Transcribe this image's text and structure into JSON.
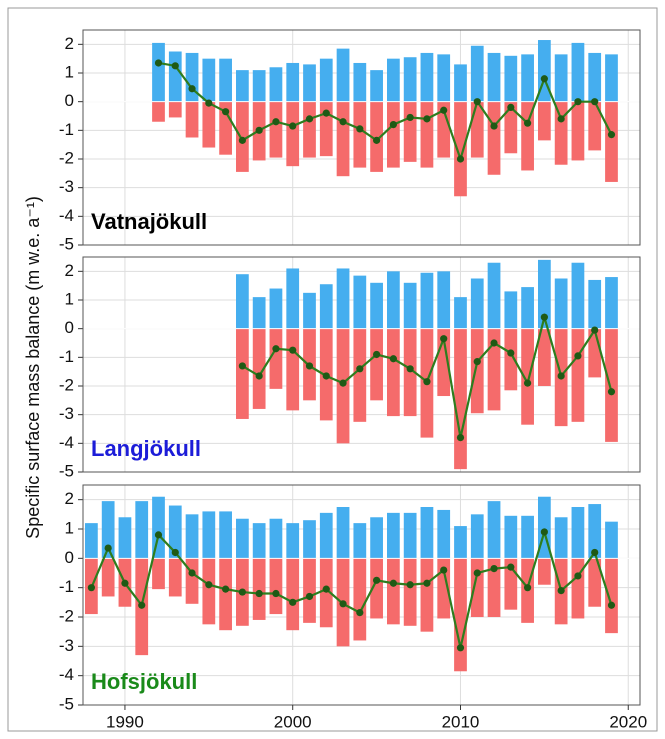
{
  "chart_data": [
    {
      "type": "bar",
      "label": "Vatnajökull",
      "label_color": "#000000",
      "ylabel": "Specific surface mass balance (m w.e. a⁻¹)",
      "xlim": [
        1987.5,
        2020.7
      ],
      "xticks": [
        1990,
        2000,
        2010,
        2020
      ],
      "xtick_labels": false,
      "ylim": [
        -5,
        2.5
      ],
      "yticks": [
        -5,
        -4,
        -3,
        -2,
        -1,
        0,
        1,
        2
      ],
      "grid": true,
      "x": [
        1992,
        1993,
        1994,
        1995,
        1996,
        1997,
        1998,
        1999,
        2000,
        2001,
        2002,
        2003,
        2004,
        2005,
        2006,
        2007,
        2008,
        2009,
        2010,
        2011,
        2012,
        2013,
        2014,
        2015,
        2016,
        2017,
        2018,
        2019
      ],
      "series": [
        {
          "mark": "bar",
          "color": "#45aeef",
          "values": [
            2.05,
            1.75,
            1.7,
            1.5,
            1.5,
            1.1,
            1.1,
            1.2,
            1.35,
            1.3,
            1.5,
            1.85,
            1.35,
            1.1,
            1.5,
            1.55,
            1.7,
            1.65,
            1.3,
            1.95,
            1.7,
            1.6,
            1.65,
            2.15,
            1.65,
            2.05,
            1.7,
            1.65
          ]
        },
        {
          "mark": "bar",
          "color": "#f56b6b",
          "values": [
            -0.7,
            -0.55,
            -1.25,
            -1.6,
            -1.85,
            -2.45,
            -2.05,
            -1.95,
            -2.25,
            -1.95,
            -1.9,
            -2.6,
            -2.3,
            -2.45,
            -2.3,
            -2.1,
            -2.3,
            -1.95,
            -3.3,
            -1.95,
            -2.55,
            -1.8,
            -2.4,
            -1.35,
            -2.2,
            -2.05,
            -1.7,
            -2.8
          ]
        },
        {
          "mark": "line",
          "color": "#2e7d1e",
          "values": [
            1.35,
            1.25,
            0.45,
            -0.05,
            -0.35,
            -1.35,
            -1.0,
            -0.7,
            -0.85,
            -0.6,
            -0.4,
            -0.7,
            -0.95,
            -1.35,
            -0.8,
            -0.55,
            -0.6,
            -0.3,
            -2.0,
            0.0,
            -0.85,
            -0.2,
            -0.75,
            0.8,
            -0.6,
            0.0,
            0.0,
            -1.15
          ]
        }
      ]
    },
    {
      "type": "bar",
      "label": "Langjökull",
      "label_color": "#1c1cd8",
      "xlim": [
        1987.5,
        2020.7
      ],
      "xticks": [
        1990,
        2000,
        2010,
        2020
      ],
      "xtick_labels": false,
      "ylim": [
        -5,
        2.5
      ],
      "yticks": [
        -5,
        -4,
        -3,
        -2,
        -1,
        0,
        1,
        2
      ],
      "grid": true,
      "x": [
        1997,
        1998,
        1999,
        2000,
        2001,
        2002,
        2003,
        2004,
        2005,
        2006,
        2007,
        2008,
        2009,
        2010,
        2011,
        2012,
        2013,
        2014,
        2015,
        2016,
        2017,
        2018,
        2019
      ],
      "series": [
        {
          "mark": "bar",
          "color": "#45aeef",
          "values": [
            1.9,
            1.1,
            1.4,
            2.1,
            1.25,
            1.55,
            2.1,
            1.85,
            1.6,
            2.0,
            1.6,
            1.95,
            2.0,
            1.1,
            1.75,
            2.3,
            1.3,
            1.45,
            2.4,
            1.75,
            2.3,
            1.7,
            1.8
          ]
        },
        {
          "mark": "bar",
          "color": "#f56b6b",
          "values": [
            -3.15,
            -2.8,
            -2.1,
            -2.85,
            -2.5,
            -3.2,
            -4.0,
            -3.25,
            -2.5,
            -3.05,
            -3.05,
            -3.8,
            -2.35,
            -4.9,
            -2.95,
            -2.85,
            -2.15,
            -3.35,
            -2.0,
            -3.4,
            -3.25,
            -1.7,
            -3.95
          ]
        },
        {
          "mark": "line",
          "color": "#2e7d1e",
          "values": [
            -1.3,
            -1.65,
            -0.7,
            -0.75,
            -1.3,
            -1.65,
            -1.9,
            -1.4,
            -0.9,
            -1.05,
            -1.4,
            -1.85,
            -0.35,
            -3.8,
            -1.15,
            -0.5,
            -0.85,
            -1.9,
            0.4,
            -1.65,
            -0.95,
            -0.05,
            -2.2
          ]
        }
      ]
    },
    {
      "type": "bar",
      "label": "Hofsjökull",
      "label_color": "#1a8a1a",
      "xlim": [
        1987.5,
        2020.7
      ],
      "xticks": [
        1990,
        2000,
        2010,
        2020
      ],
      "xtick_labels": true,
      "ylim": [
        -5,
        2.5
      ],
      "yticks": [
        -5,
        -4,
        -3,
        -2,
        -1,
        0,
        1,
        2
      ],
      "grid": true,
      "x": [
        1988,
        1989,
        1990,
        1991,
        1992,
        1993,
        1994,
        1995,
        1996,
        1997,
        1998,
        1999,
        2000,
        2001,
        2002,
        2003,
        2004,
        2005,
        2006,
        2007,
        2008,
        2009,
        2010,
        2011,
        2012,
        2013,
        2014,
        2015,
        2016,
        2017,
        2018,
        2019
      ],
      "series": [
        {
          "mark": "bar",
          "color": "#45aeef",
          "values": [
            1.2,
            1.95,
            1.4,
            1.95,
            2.1,
            1.8,
            1.5,
            1.6,
            1.6,
            1.35,
            1.2,
            1.35,
            1.2,
            1.3,
            1.55,
            1.75,
            1.2,
            1.4,
            1.55,
            1.55,
            1.75,
            1.65,
            1.1,
            1.5,
            1.95,
            1.45,
            1.45,
            2.1,
            1.4,
            1.75,
            1.85,
            1.25
          ]
        },
        {
          "mark": "bar",
          "color": "#f56b6b",
          "values": [
            -1.9,
            -1.3,
            -1.65,
            -3.3,
            -1.05,
            -1.3,
            -1.55,
            -2.25,
            -2.45,
            -2.3,
            -2.1,
            -1.9,
            -2.45,
            -2.2,
            -2.35,
            -3.0,
            -2.8,
            -2.05,
            -2.25,
            -2.3,
            -2.5,
            -2.05,
            -3.85,
            -2.0,
            -2.0,
            -1.75,
            -2.2,
            -0.9,
            -2.25,
            -2.05,
            -1.65,
            -2.55
          ]
        },
        {
          "mark": "line",
          "color": "#2e7d1e",
          "values": [
            -1.0,
            0.35,
            -0.85,
            -1.6,
            0.8,
            0.2,
            -0.5,
            -0.9,
            -1.05,
            -1.15,
            -1.2,
            -1.2,
            -1.5,
            -1.3,
            -1.05,
            -1.55,
            -1.85,
            -0.75,
            -0.85,
            -0.9,
            -0.85,
            -0.4,
            -3.05,
            -0.5,
            -0.35,
            -0.3,
            -1.0,
            0.9,
            -1.1,
            -0.6,
            0.2,
            -1.6
          ]
        }
      ]
    }
  ]
}
